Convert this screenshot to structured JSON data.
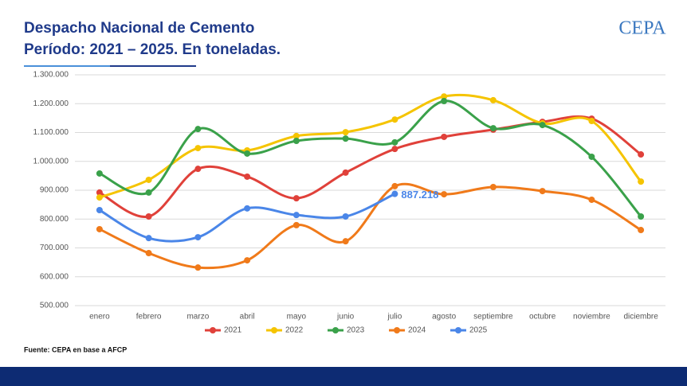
{
  "title": "Despacho Nacional de Cemento",
  "subtitle": "Período: 2021 – 2025. En toneladas.",
  "logo": "CEPA",
  "source": "Fuente: CEPA en base a AFCP",
  "chart_data": {
    "type": "line",
    "categories": [
      "enero",
      "febrero",
      "marzo",
      "abril",
      "mayo",
      "junio",
      "julio",
      "agosto",
      "septiembre",
      "octubre",
      "noviembre",
      "diciembre"
    ],
    "series": [
      {
        "name": "2021",
        "color": "#e0413a",
        "values": [
          892000,
          809000,
          974000,
          947000,
          872000,
          961000,
          1043000,
          1085000,
          1110000,
          1137000,
          1148000,
          1024000
        ]
      },
      {
        "name": "2022",
        "color": "#f5c400",
        "values": [
          875000,
          936000,
          1046000,
          1038000,
          1088000,
          1101000,
          1145000,
          1225000,
          1212000,
          1132000,
          1140000,
          930000
        ]
      },
      {
        "name": "2023",
        "color": "#3aa14a",
        "values": [
          958000,
          892000,
          1112000,
          1027000,
          1071000,
          1079000,
          1066000,
          1209000,
          1115000,
          1126000,
          1016000,
          809000
        ]
      },
      {
        "name": "2024",
        "color": "#f07a1a",
        "values": [
          765000,
          682000,
          632000,
          657000,
          779000,
          723000,
          914000,
          886000,
          911000,
          897000,
          867000,
          762000
        ]
      },
      {
        "name": "2025",
        "color": "#4a86e8",
        "values": [
          831000,
          734000,
          737000,
          837000,
          814000,
          809000,
          887218,
          null,
          null,
          null,
          null,
          null
        ],
        "value_labels": [
          null,
          null,
          null,
          null,
          null,
          null,
          "887.218",
          null,
          null,
          null,
          null,
          null
        ]
      }
    ],
    "ylim": [
      500000,
      1300000
    ],
    "yticks": [
      {
        "value": 500000,
        "label": "500.000"
      },
      {
        "value": 600000,
        "label": "600.000"
      },
      {
        "value": 700000,
        "label": "700.000"
      },
      {
        "value": 800000,
        "label": "800.000"
      },
      {
        "value": 900000,
        "label": "900.000"
      },
      {
        "value": 1000000,
        "label": "1.000.000"
      },
      {
        "value": 1100000,
        "label": "1.100.000"
      },
      {
        "value": 1200000,
        "label": "1.200.000"
      },
      {
        "value": 1300000,
        "label": "1.300.000"
      }
    ],
    "grid": true,
    "legend": "bottom"
  }
}
